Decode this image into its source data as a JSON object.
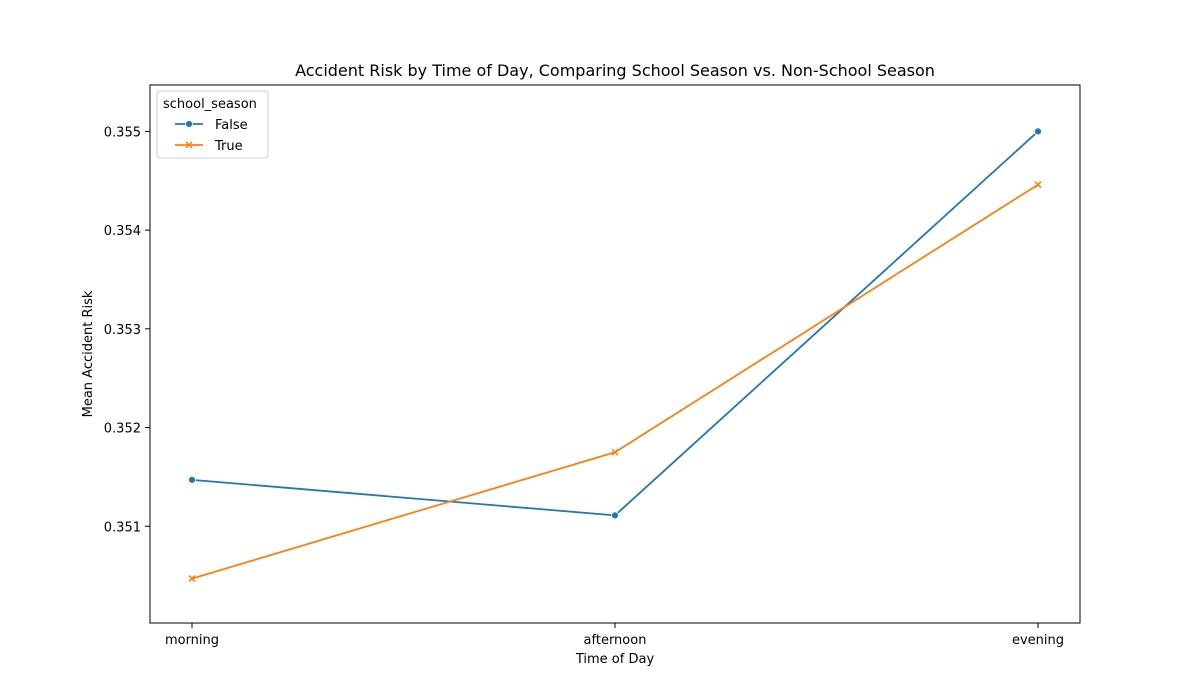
{
  "chart_data": {
    "type": "line",
    "title": "Accident Risk by Time of Day, Comparing School Season vs. Non-School Season",
    "xlabel": "Time of Day",
    "ylabel": "Mean Accident Risk",
    "categories": [
      "morning",
      "afternoon",
      "evening"
    ],
    "ylim": [
      0.35002,
      0.35547
    ],
    "yticks": [
      0.351,
      0.352,
      0.353,
      0.354,
      0.355
    ],
    "ytick_labels": [
      "0.351",
      "0.352",
      "0.353",
      "0.354",
      "0.355"
    ],
    "grid": false,
    "legend": {
      "title": "school_season",
      "placement": "top-left"
    },
    "series": [
      {
        "name": "False",
        "color": "#1f77b4",
        "marker": "circle",
        "values": [
          0.35147,
          0.35111,
          0.355
        ]
      },
      {
        "name": "True",
        "color": "#ff7f0e",
        "marker": "x",
        "values": [
          0.35047,
          0.35175,
          0.35446
        ]
      }
    ]
  }
}
